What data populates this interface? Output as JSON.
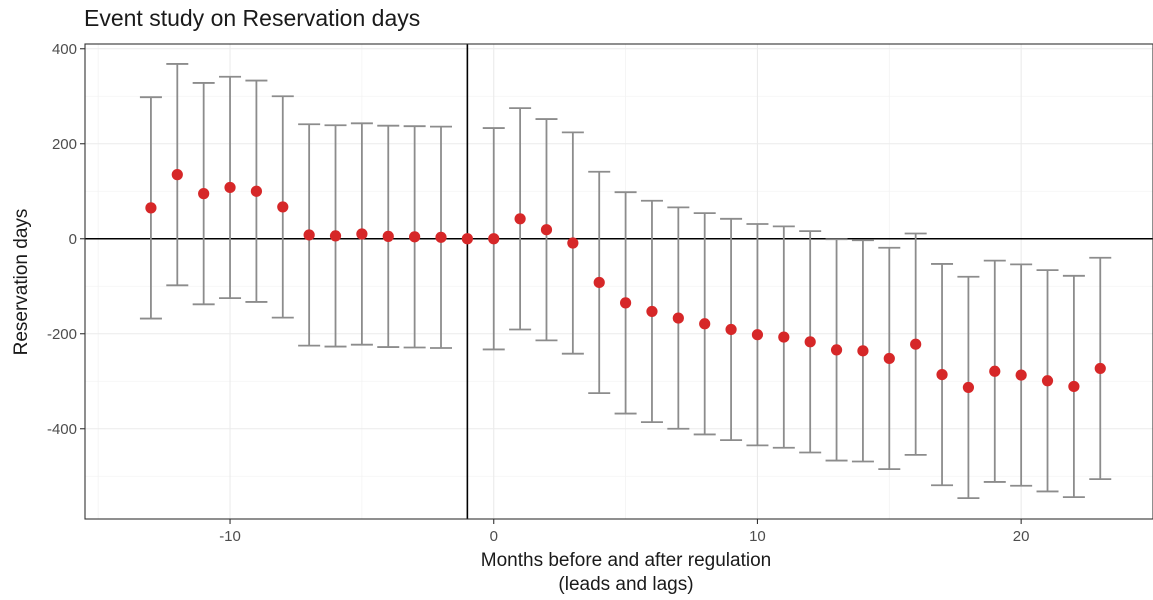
{
  "chart_data": {
    "type": "scatter",
    "title": "Event study on Reservation days",
    "xlabel": "Months before and after regulation",
    "xlabel_line2": "(leads and lags)",
    "ylabel": "Reservation days",
    "xlim": [
      -15.5,
      25
    ],
    "ylim": [
      -590,
      410
    ],
    "x_ticks": [
      -10,
      0,
      10,
      20
    ],
    "x_tick_labels": [
      "-10",
      "0",
      "10",
      "20"
    ],
    "y_ticks": [
      400,
      200,
      0,
      -200,
      -400
    ],
    "y_tick_labels": [
      "400",
      "200",
      "0",
      "-200",
      "-400"
    ],
    "hline": 0,
    "vline": -1,
    "grid": true,
    "point_color": "#d62728",
    "errorbar_color": "#8c8c8c",
    "points": [
      {
        "x": -13,
        "y": 65,
        "lo": -168,
        "hi": 298
      },
      {
        "x": -12,
        "y": 135,
        "lo": -98,
        "hi": 368
      },
      {
        "x": -11,
        "y": 95,
        "lo": -138,
        "hi": 328
      },
      {
        "x": -10,
        "y": 108,
        "lo": -125,
        "hi": 341
      },
      {
        "x": -9,
        "y": 100,
        "lo": -133,
        "hi": 333
      },
      {
        "x": -8,
        "y": 67,
        "lo": -166,
        "hi": 300
      },
      {
        "x": -7,
        "y": 8,
        "lo": -225,
        "hi": 241
      },
      {
        "x": -6,
        "y": 6,
        "lo": -227,
        "hi": 239
      },
      {
        "x": -5,
        "y": 10,
        "lo": -223,
        "hi": 243
      },
      {
        "x": -4,
        "y": 5,
        "lo": -228,
        "hi": 238
      },
      {
        "x": -3,
        "y": 4,
        "lo": -229,
        "hi": 237
      },
      {
        "x": -2,
        "y": 3,
        "lo": -230,
        "hi": 236
      },
      {
        "x": -1,
        "y": 0,
        "lo": 0,
        "hi": 0
      },
      {
        "x": 0,
        "y": 0,
        "lo": -233,
        "hi": 233
      },
      {
        "x": 1,
        "y": 42,
        "lo": -191,
        "hi": 275
      },
      {
        "x": 2,
        "y": 19,
        "lo": -214,
        "hi": 252
      },
      {
        "x": 3,
        "y": -9,
        "lo": -242,
        "hi": 224
      },
      {
        "x": 4,
        "y": -92,
        "lo": -325,
        "hi": 141
      },
      {
        "x": 5,
        "y": -135,
        "lo": -368,
        "hi": 98
      },
      {
        "x": 6,
        "y": -153,
        "lo": -386,
        "hi": 80
      },
      {
        "x": 7,
        "y": -167,
        "lo": -400,
        "hi": 66
      },
      {
        "x": 8,
        "y": -179,
        "lo": -412,
        "hi": 54
      },
      {
        "x": 9,
        "y": -191,
        "lo": -424,
        "hi": 42
      },
      {
        "x": 10,
        "y": -202,
        "lo": -435,
        "hi": 31
      },
      {
        "x": 11,
        "y": -207,
        "lo": -440,
        "hi": 26
      },
      {
        "x": 12,
        "y": -217,
        "lo": -450,
        "hi": 16
      },
      {
        "x": 13,
        "y": -234,
        "lo": -467,
        "hi": -1
      },
      {
        "x": 14,
        "y": -236,
        "lo": -469,
        "hi": -3
      },
      {
        "x": 15,
        "y": -252,
        "lo": -485,
        "hi": -19
      },
      {
        "x": 16,
        "y": -222,
        "lo": -455,
        "hi": 11
      },
      {
        "x": 17,
        "y": -286,
        "lo": -519,
        "hi": -53
      },
      {
        "x": 18,
        "y": -313,
        "lo": -546,
        "hi": -80
      },
      {
        "x": 19,
        "y": -279,
        "lo": -512,
        "hi": -46
      },
      {
        "x": 20,
        "y": -287,
        "lo": -520,
        "hi": -54
      },
      {
        "x": 21,
        "y": -299,
        "lo": -532,
        "hi": -66
      },
      {
        "x": 22,
        "y": -311,
        "lo": -544,
        "hi": -78
      },
      {
        "x": 23,
        "y": -273,
        "lo": -506,
        "hi": -40
      }
    ]
  }
}
